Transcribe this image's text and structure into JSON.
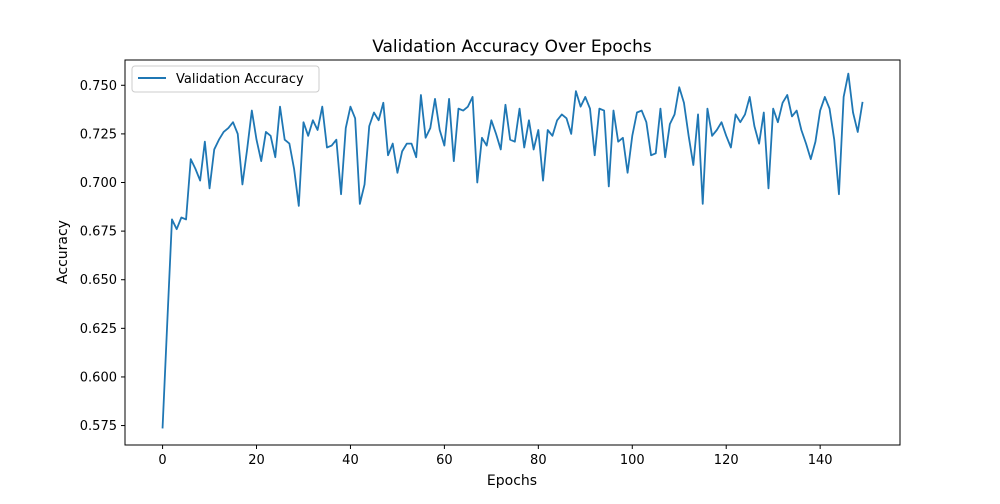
{
  "chart_data": {
    "type": "line",
    "title": "Validation Accuracy Over Epochs",
    "xlabel": "Epochs",
    "ylabel": "Accuracy",
    "xlim": [
      -8,
      157
    ],
    "ylim": [
      0.565,
      0.763
    ],
    "xticks": [
      0,
      20,
      40,
      60,
      80,
      100,
      120,
      140
    ],
    "xtick_labels": [
      "0",
      "20",
      "40",
      "60",
      "80",
      "100",
      "120",
      "140"
    ],
    "yticks": [
      0.575,
      0.6,
      0.625,
      0.65,
      0.675,
      0.7,
      0.725,
      0.75
    ],
    "ytick_labels": [
      "0.575",
      "0.600",
      "0.625",
      "0.650",
      "0.675",
      "0.700",
      "0.725",
      "0.750"
    ],
    "grid": false,
    "legend_position": "top-left",
    "series": [
      {
        "name": "Validation Accuracy",
        "color": "#1f77b4",
        "values": [
          0.574,
          0.628,
          0.681,
          0.676,
          0.682,
          0.681,
          0.712,
          0.707,
          0.701,
          0.721,
          0.697,
          0.717,
          0.722,
          0.726,
          0.728,
          0.731,
          0.725,
          0.699,
          0.717,
          0.737,
          0.722,
          0.711,
          0.726,
          0.724,
          0.713,
          0.739,
          0.722,
          0.72,
          0.707,
          0.688,
          0.731,
          0.724,
          0.732,
          0.727,
          0.739,
          0.718,
          0.719,
          0.722,
          0.694,
          0.728,
          0.739,
          0.733,
          0.689,
          0.699,
          0.729,
          0.736,
          0.732,
          0.741,
          0.714,
          0.72,
          0.705,
          0.716,
          0.72,
          0.72,
          0.713,
          0.745,
          0.723,
          0.728,
          0.743,
          0.727,
          0.719,
          0.743,
          0.711,
          0.738,
          0.737,
          0.739,
          0.744,
          0.7,
          0.723,
          0.719,
          0.732,
          0.725,
          0.717,
          0.74,
          0.722,
          0.721,
          0.738,
          0.718,
          0.732,
          0.717,
          0.727,
          0.701,
          0.727,
          0.724,
          0.732,
          0.735,
          0.733,
          0.725,
          0.747,
          0.739,
          0.744,
          0.738,
          0.714,
          0.738,
          0.737,
          0.698,
          0.737,
          0.721,
          0.723,
          0.705,
          0.724,
          0.736,
          0.737,
          0.731,
          0.714,
          0.715,
          0.738,
          0.713,
          0.73,
          0.735,
          0.749,
          0.741,
          0.724,
          0.709,
          0.735,
          0.689,
          0.738,
          0.724,
          0.727,
          0.731,
          0.724,
          0.718,
          0.735,
          0.731,
          0.735,
          0.744,
          0.729,
          0.72,
          0.736,
          0.697,
          0.738,
          0.731,
          0.741,
          0.745,
          0.734,
          0.737,
          0.727,
          0.72,
          0.712,
          0.721,
          0.737,
          0.744,
          0.738,
          0.722,
          0.694,
          0.744,
          0.756,
          0.736,
          0.726,
          0.741
        ]
      }
    ]
  }
}
